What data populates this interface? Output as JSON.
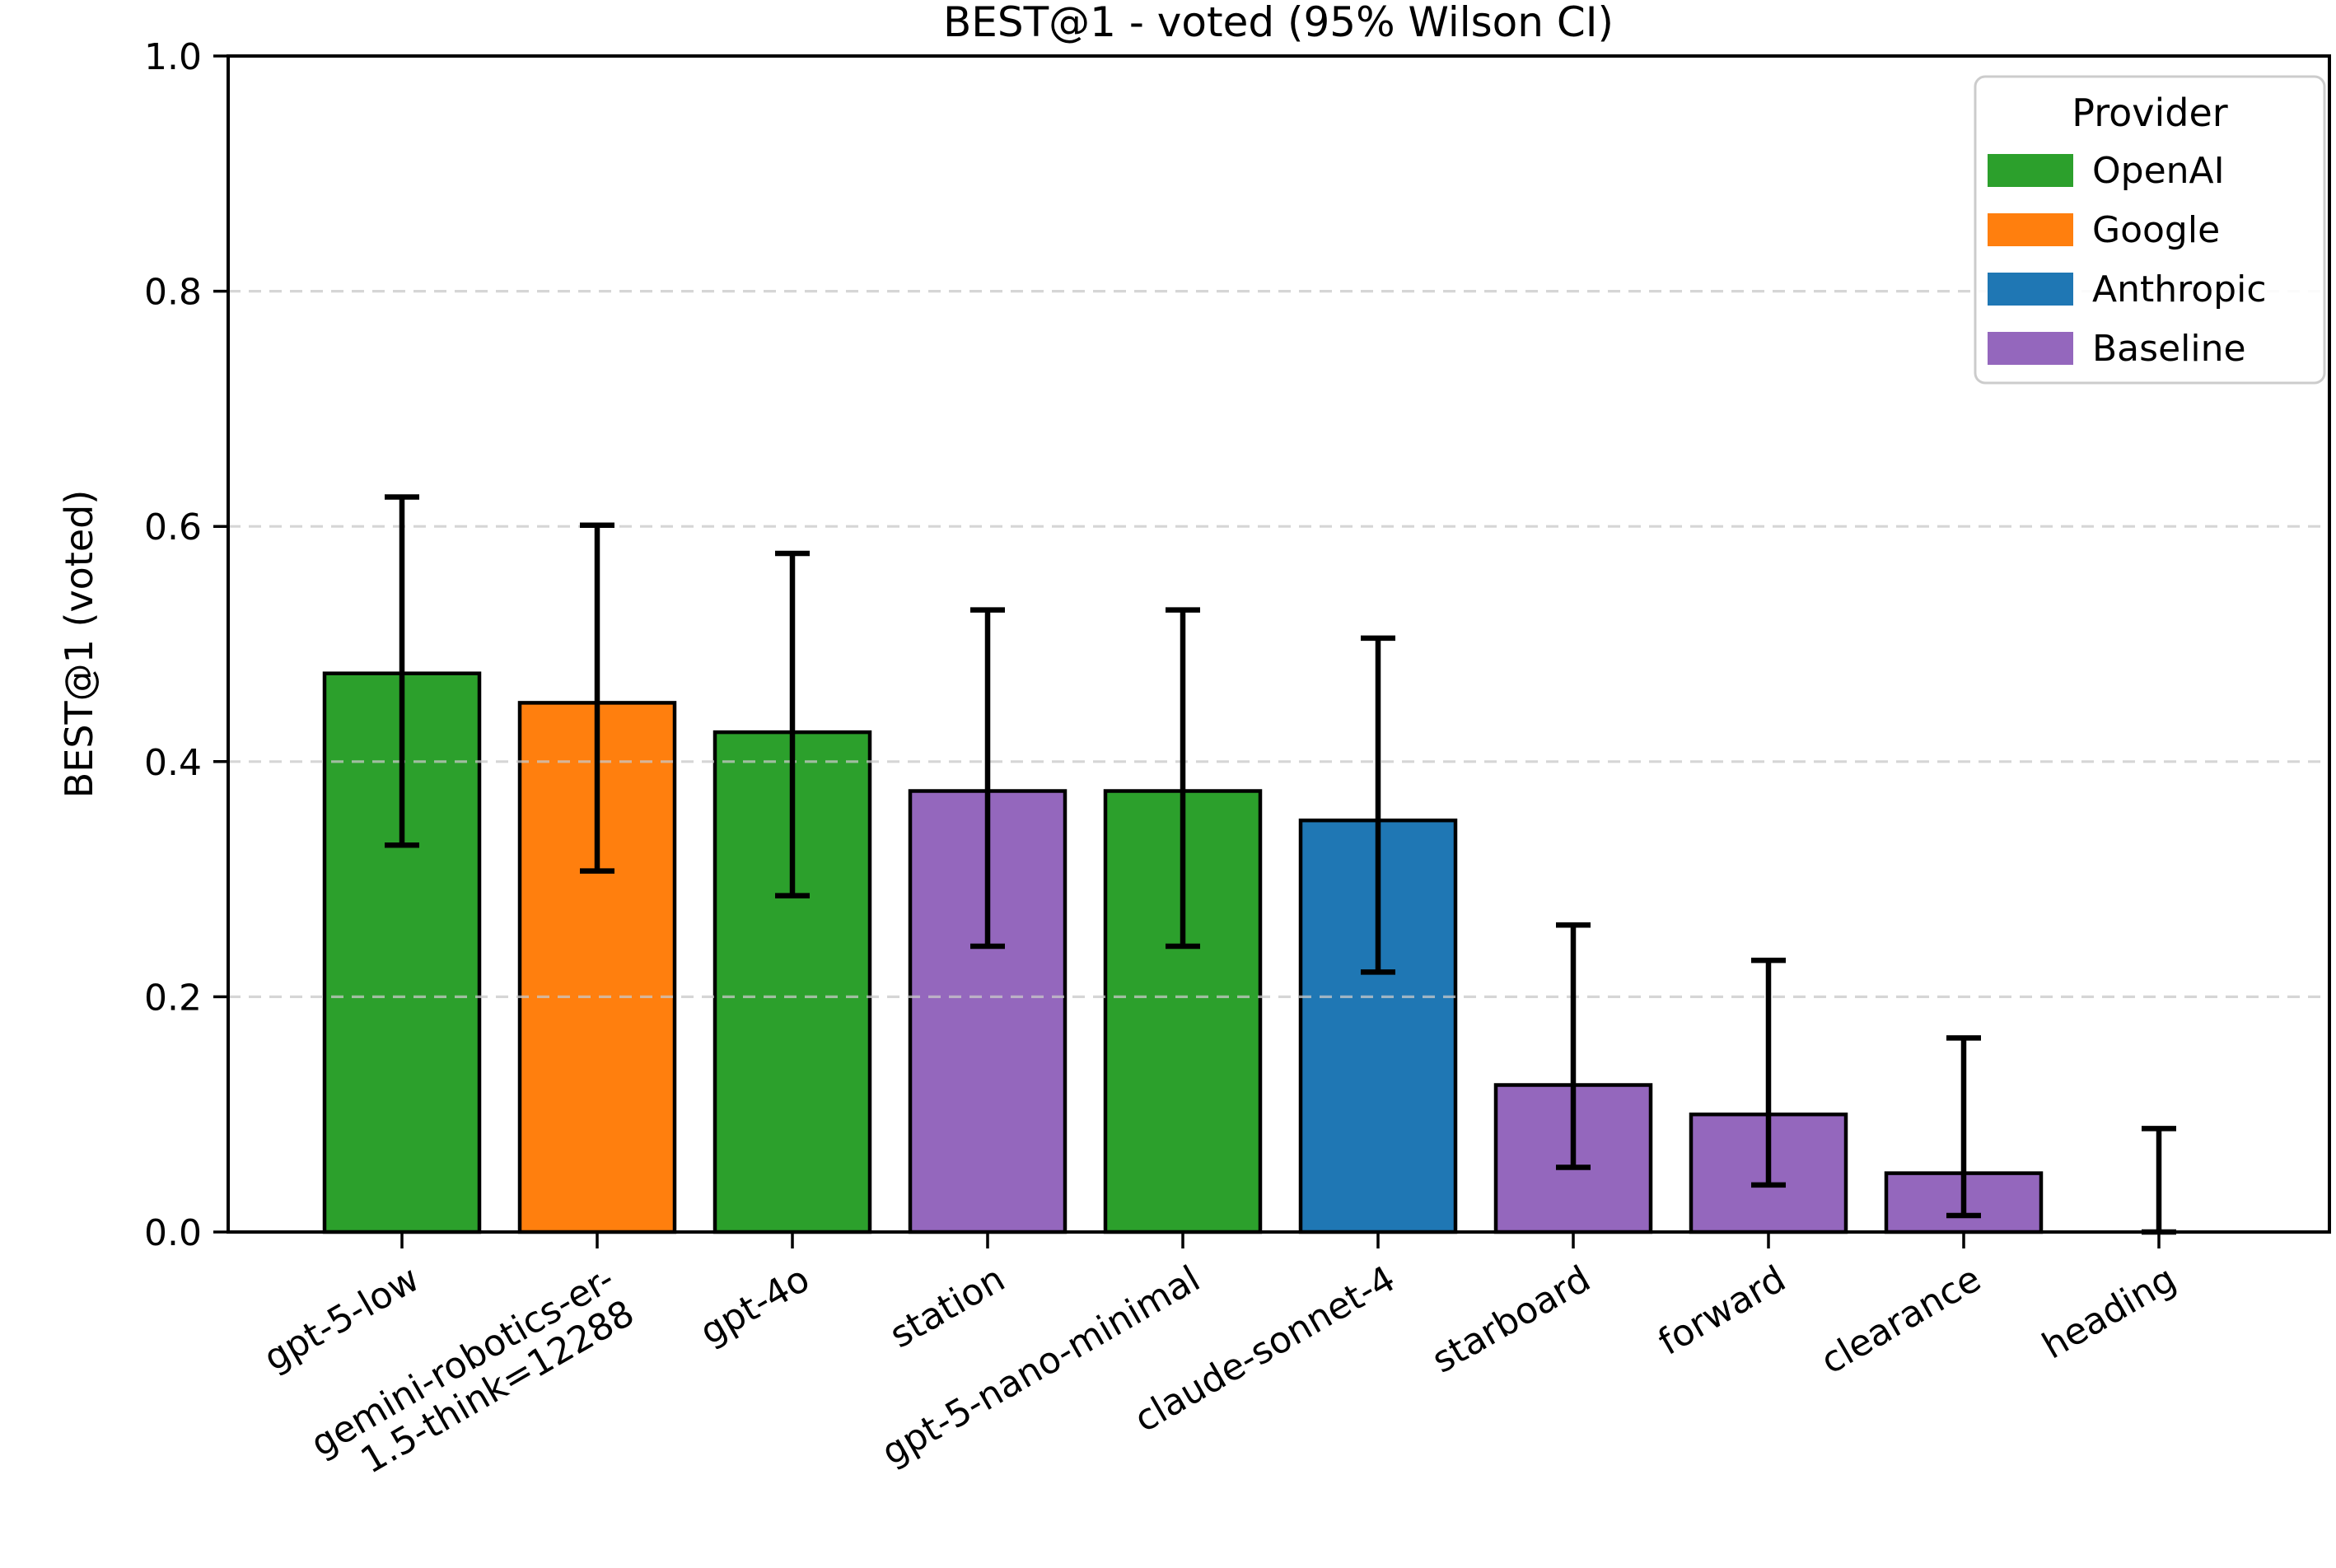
{
  "figure": {
    "title": "BEST@1 - voted (95% Wilson CI)",
    "ylabel": "BEST@1 (voted)"
  },
  "chart_data": {
    "type": "bar",
    "title": "BEST@1 - voted (95% Wilson CI)",
    "xlabel": "",
    "ylabel": "BEST@1 (voted)",
    "ylim": [
      0.0,
      1.0
    ],
    "yticks": [
      0.0,
      0.2,
      0.4,
      0.6,
      0.8,
      1.0
    ],
    "grid": true,
    "grid_style": "dashed",
    "categories": [
      "gpt-5-low",
      "gemini-robotics-er-\n1.5-think=12288",
      "gpt-4o",
      "station",
      "gpt-5-nano-minimal",
      "claude-sonnet-4",
      "starboard",
      "forward",
      "clearance",
      "heading"
    ],
    "series": [
      {
        "name": "BEST@1 (voted)",
        "values": [
          0.475,
          0.45,
          0.425,
          0.375,
          0.375,
          0.35,
          0.125,
          0.1,
          0.05,
          0.0
        ]
      }
    ],
    "bar_providers": [
      "OpenAI",
      "Google",
      "OpenAI",
      "Baseline",
      "OpenAI",
      "Anthropic",
      "Baseline",
      "Baseline",
      "Baseline",
      "Baseline"
    ],
    "error_bars": {
      "label": "95% Wilson CI",
      "ci_low": [
        0.329,
        0.307,
        0.286,
        0.243,
        0.243,
        0.221,
        0.055,
        0.04,
        0.014,
        0.0
      ],
      "ci_high": [
        0.625,
        0.601,
        0.577,
        0.529,
        0.529,
        0.505,
        0.261,
        0.231,
        0.165,
        0.088
      ]
    },
    "legend": {
      "title": "Provider",
      "position": "upper right",
      "entries": [
        {
          "label": "OpenAI",
          "color": "#2ca02c"
        },
        {
          "label": "Google",
          "color": "#ff7f0e"
        },
        {
          "label": "Anthropic",
          "color": "#1f77b4"
        },
        {
          "label": "Baseline",
          "color": "#9467bd"
        }
      ]
    },
    "colors": {
      "bar_edge": "#000000",
      "error_bar": "#000000",
      "grid": "#c9c9c9",
      "spine": "#000000",
      "background": "#ffffff"
    }
  }
}
